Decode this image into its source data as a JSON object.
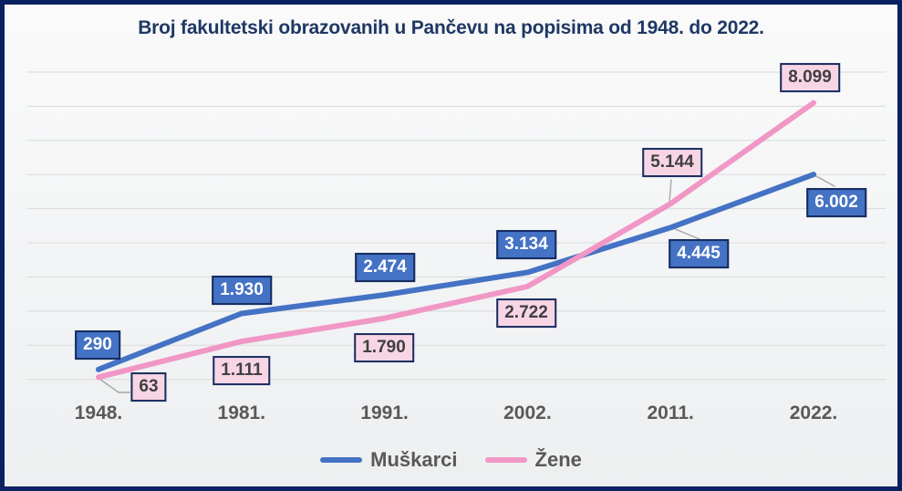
{
  "chart_data": {
    "type": "line",
    "title": "Broj fakultetski obrazovanih u Pančevu na popisima od 1948. do 2022.",
    "categories": [
      "1948.",
      "1981.",
      "1991.",
      "2002.",
      "2011.",
      "2022."
    ],
    "series": [
      {
        "id": "muskarci",
        "name": "Muškarci",
        "color": "#4472c4",
        "values": [
          290,
          1930,
          2474,
          3134,
          4445,
          6002
        ],
        "labels": [
          "290",
          "1.930",
          "2.474",
          "3.134",
          "4.445",
          "6.002"
        ],
        "label_fill": "#4472c4",
        "label_text_color": "#ffffff"
      },
      {
        "id": "zene",
        "name": "Žene",
        "color": "#f097c6",
        "values": [
          63,
          1111,
          1790,
          2722,
          5144,
          8099
        ],
        "labels": [
          "63",
          "1.111",
          "1.790",
          "2.722",
          "5.144",
          "8.099"
        ],
        "label_fill": "#f8d5e5",
        "label_text_color": "#404040"
      }
    ],
    "ylim": [
      0,
      9000
    ],
    "gridline_step": 1000,
    "grid": true,
    "legend_position": "bottom",
    "colors": {
      "frame_border": "#0a2161",
      "title_text": "#1f3864",
      "axis_label_text": "#595959",
      "legend_text": "#595959",
      "gridline": "#d9d9d9",
      "label_border": "#152b5e",
      "leader_line": "#a6a6a6"
    }
  }
}
